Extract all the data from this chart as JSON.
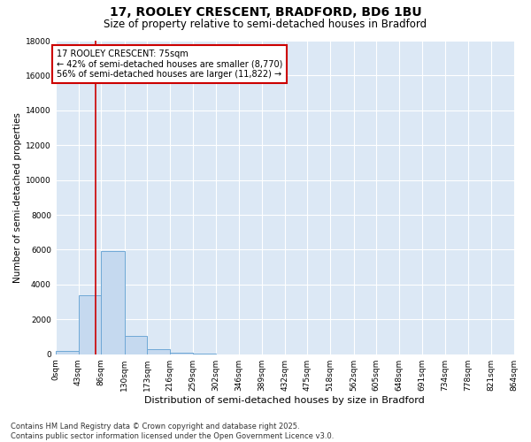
{
  "title_line1": "17, ROOLEY CRESCENT, BRADFORD, BD6 1BU",
  "title_line2": "Size of property relative to semi-detached houses in Bradford",
  "xlabel": "Distribution of semi-detached houses by size in Bradford",
  "ylabel": "Number of semi-detached properties",
  "bar_color": "#c5d9ef",
  "bar_edge_color": "#6fa8d6",
  "vline_color": "#cc0000",
  "vline_x": 75,
  "annotation_text": "17 ROOLEY CRESCENT: 75sqm\n← 42% of semi-detached houses are smaller (8,770)\n56% of semi-detached houses are larger (11,822) →",
  "annotation_box_color": "#cc0000",
  "bins": [
    0,
    43,
    86,
    130,
    173,
    216,
    259,
    302,
    346,
    389,
    432,
    475,
    518,
    562,
    605,
    648,
    691,
    734,
    778,
    821,
    864
  ],
  "bin_labels": [
    "0sqm",
    "43sqm",
    "86sqm",
    "130sqm",
    "173sqm",
    "216sqm",
    "259sqm",
    "302sqm",
    "346sqm",
    "389sqm",
    "432sqm",
    "475sqm",
    "518sqm",
    "562sqm",
    "605sqm",
    "648sqm",
    "691sqm",
    "734sqm",
    "778sqm",
    "821sqm",
    "864sqm"
  ],
  "bar_values": [
    200,
    3400,
    5900,
    1050,
    270,
    110,
    35,
    0,
    0,
    0,
    0,
    0,
    0,
    0,
    0,
    0,
    0,
    0,
    0,
    0
  ],
  "ylim": [
    0,
    18000
  ],
  "yticks": [
    0,
    2000,
    4000,
    6000,
    8000,
    10000,
    12000,
    14000,
    16000,
    18000
  ],
  "fig_bg_color": "#ffffff",
  "plot_bg_color": "#dce8f5",
  "grid_color": "#ffffff",
  "footer_text": "Contains HM Land Registry data © Crown copyright and database right 2025.\nContains public sector information licensed under the Open Government Licence v3.0.",
  "title_fontsize": 10,
  "subtitle_fontsize": 8.5,
  "ylabel_fontsize": 7.5,
  "xlabel_fontsize": 8,
  "tick_fontsize": 6.5,
  "annotation_fontsize": 7,
  "footer_fontsize": 6
}
